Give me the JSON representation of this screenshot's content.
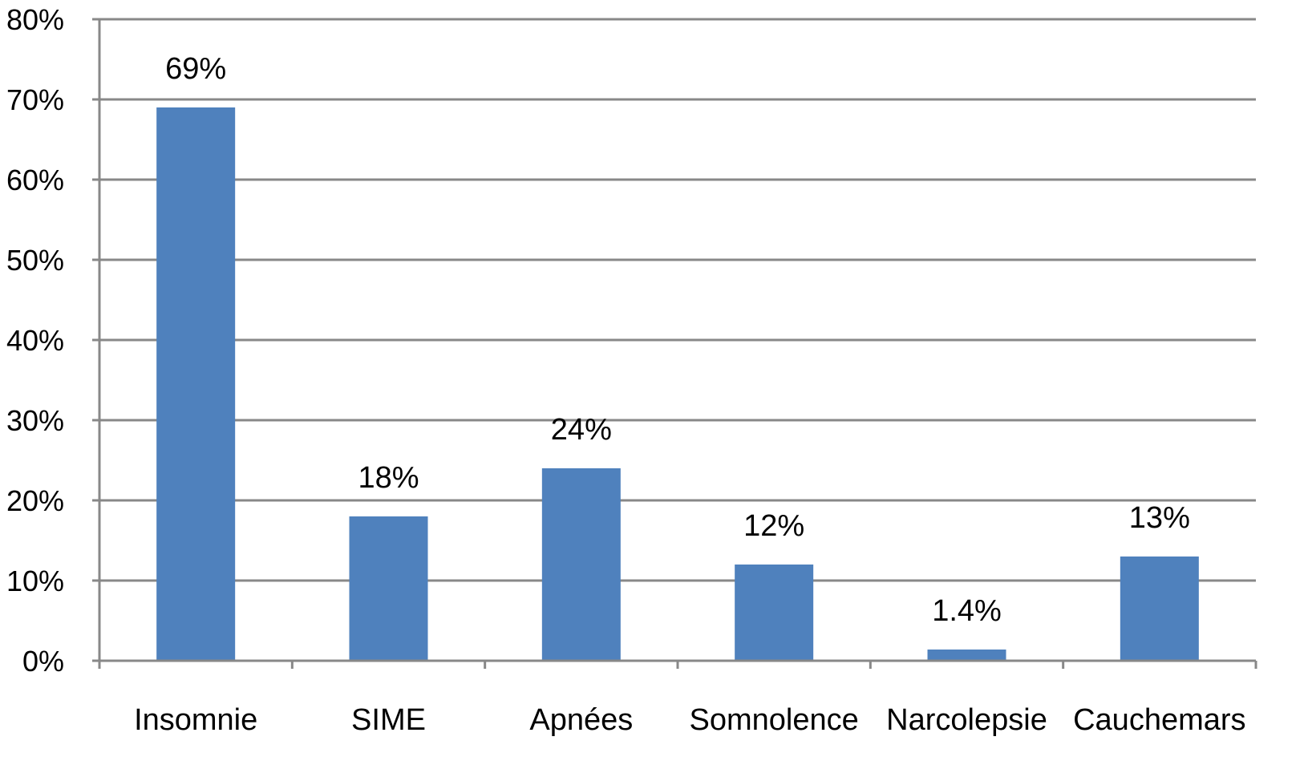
{
  "chart_data": {
    "type": "bar",
    "categories": [
      "Insomnie",
      "SIME",
      "Apnées",
      "Somnolence",
      "Narcolepsie",
      "Cauchemars"
    ],
    "values": [
      69,
      18,
      24,
      12,
      1.4,
      13
    ],
    "data_labels": [
      "69%",
      "18%",
      "24%",
      "12%",
      "1.4%",
      "13%"
    ],
    "ylim": [
      0,
      80
    ],
    "yticks": [
      0,
      10,
      20,
      30,
      40,
      50,
      60,
      70,
      80
    ],
    "ytick_labels": [
      "0%",
      "10%",
      "20%",
      "30%",
      "40%",
      "50%",
      "60%",
      "70%",
      "80%"
    ],
    "grid": true,
    "bar_color": "#4F81BD",
    "legend": "none"
  }
}
